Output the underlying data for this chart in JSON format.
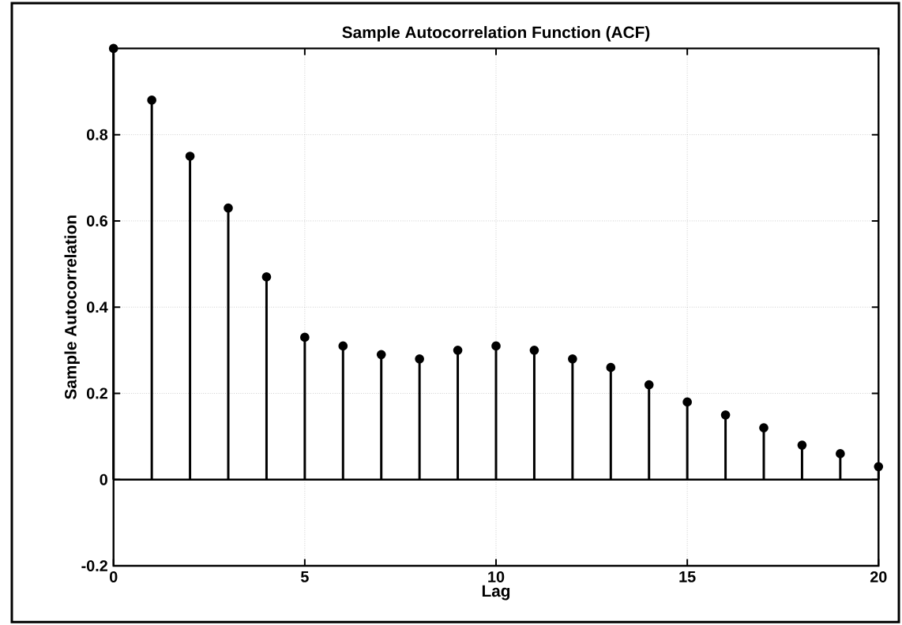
{
  "chart_data": {
    "type": "lollipop",
    "title": "Sample Autocorrelation Function (ACF)",
    "xlabel": "Lag",
    "ylabel": "Sample Autocorrelation",
    "x": [
      0,
      1,
      2,
      3,
      4,
      5,
      6,
      7,
      8,
      9,
      10,
      11,
      12,
      13,
      14,
      15,
      16,
      17,
      18,
      19,
      20
    ],
    "values": [
      1.0,
      0.88,
      0.75,
      0.63,
      0.47,
      0.33,
      0.31,
      0.29,
      0.28,
      0.3,
      0.31,
      0.3,
      0.28,
      0.26,
      0.22,
      0.18,
      0.15,
      0.12,
      0.08,
      0.06,
      0.03
    ],
    "color": "#000000",
    "marker": "circle",
    "xlim": [
      0,
      20
    ],
    "xticks": [
      0,
      5,
      10,
      15,
      20
    ],
    "ylim": [
      -0.2,
      1
    ],
    "yticks": [
      -0.2,
      0,
      0.2,
      0.4,
      0.6,
      0.8
    ],
    "grid": true,
    "ref_lines": [
      {
        "axis": "y",
        "value": 0,
        "color": "#000000",
        "line_style": "solid"
      }
    ]
  }
}
